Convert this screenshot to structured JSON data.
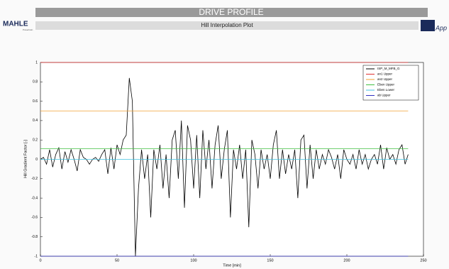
{
  "header": {
    "title": "DRIVE PROFILE",
    "subtitle": "Hill Interpolation Plot",
    "logo_left": "MAHLE",
    "logo_left_sub": "Powertrain",
    "logo_right": "App"
  },
  "chart_data": {
    "type": "line",
    "xlabel": "Time [min]",
    "ylabel": "Hill Gradient Factor [-]",
    "xlim": [
      0,
      250
    ],
    "xticks": [
      0,
      50,
      100,
      150,
      200,
      250
    ],
    "ylim": [
      -1,
      1
    ],
    "yticks": [
      -1,
      -0.8,
      -0.6,
      -0.4,
      -0.2,
      0,
      0.2,
      0.4,
      0.6,
      0.8,
      1
    ],
    "grid": false,
    "legend": "upper right",
    "series": [
      {
        "name": "ISP_M_MFB_G",
        "color": "#000000",
        "x": [
          0,
          2,
          4,
          6,
          8,
          10,
          12,
          14,
          16,
          18,
          20,
          22,
          24,
          26,
          28,
          30,
          32,
          34,
          36,
          38,
          40,
          42,
          44,
          46,
          48,
          50,
          52,
          54,
          56,
          58,
          60,
          62,
          64,
          66,
          68,
          70,
          72,
          74,
          76,
          78,
          80,
          82,
          84,
          86,
          88,
          90,
          92,
          94,
          96,
          98,
          100,
          102,
          104,
          106,
          108,
          110,
          112,
          114,
          116,
          118,
          120,
          122,
          124,
          126,
          128,
          130,
          132,
          134,
          136,
          138,
          140,
          142,
          144,
          146,
          148,
          150,
          152,
          154,
          156,
          158,
          160,
          162,
          164,
          166,
          168,
          170,
          172,
          174,
          176,
          178,
          180,
          182,
          184,
          186,
          188,
          190,
          192,
          194,
          196,
          198,
          200,
          202,
          204,
          206,
          208,
          210,
          212,
          214,
          216,
          218,
          220,
          222,
          224,
          226,
          228,
          230,
          232,
          234,
          236,
          238,
          240
        ],
        "values": [
          0,
          0.02,
          -0.05,
          0.1,
          -0.08,
          0.05,
          0.12,
          -0.1,
          0.08,
          -0.03,
          0.1,
          0,
          -0.12,
          0.1,
          0.02,
          0,
          -0.05,
          0,
          0.02,
          -0.02,
          0.05,
          0.1,
          -0.15,
          0.12,
          -0.1,
          0.15,
          0.05,
          0.2,
          0.25,
          0.84,
          0.6,
          -1,
          -0.3,
          0.1,
          -0.2,
          0.05,
          -0.6,
          0.1,
          -0.1,
          0.15,
          -0.3,
          0.05,
          -0.4,
          0.2,
          0.3,
          -0.2,
          0.4,
          -0.5,
          0.35,
          0.2,
          -0.3,
          0.25,
          -0.4,
          0.3,
          -0.1,
          0.2,
          -0.3,
          0.15,
          0.35,
          -0.2,
          0.1,
          0.3,
          -0.6,
          0.1,
          -0.1,
          0.15,
          -0.2,
          0.1,
          -0.7,
          0.2,
          0.05,
          -0.3,
          0.1,
          -0.1,
          0.05,
          -0.2,
          0.15,
          0.3,
          -0.2,
          0.1,
          -0.15,
          0.05,
          -0.1,
          0.1,
          -0.4,
          0.2,
          0.25,
          -0.3,
          0.15,
          -0.2,
          0.1,
          -0.1,
          0.05,
          -0.05,
          0.1,
          0.02,
          -0.1,
          0.05,
          -0.2,
          0.1,
          0,
          -0.05,
          0.05,
          -0.1,
          0.1,
          -0.05,
          0.05,
          -0.1,
          0,
          0.05,
          -0.05,
          0.15,
          -0.1,
          0.12,
          0,
          0.05,
          -0.05,
          0.1,
          0.15,
          -0.05,
          0.05
        ]
      },
      {
        "name": "an1 Upper",
        "color": "#e03030",
        "x": [
          0,
          240
        ],
        "values": [
          1,
          1
        ]
      },
      {
        "name": "an2 Upper",
        "color": "#f0a030",
        "x": [
          0,
          240
        ],
        "values": [
          0.5,
          0.5
        ]
      },
      {
        "name": "Eben Upper",
        "color": "#40c040",
        "x": [
          0,
          240
        ],
        "values": [
          0.11,
          0.11
        ]
      },
      {
        "name": "Eben Lower",
        "color": "#40c0e0",
        "x": [
          0,
          240
        ],
        "values": [
          0,
          0
        ]
      },
      {
        "name": "ab Upper",
        "color": "#3030c0",
        "x": [
          0,
          240
        ],
        "values": [
          -1,
          -1
        ]
      }
    ]
  }
}
